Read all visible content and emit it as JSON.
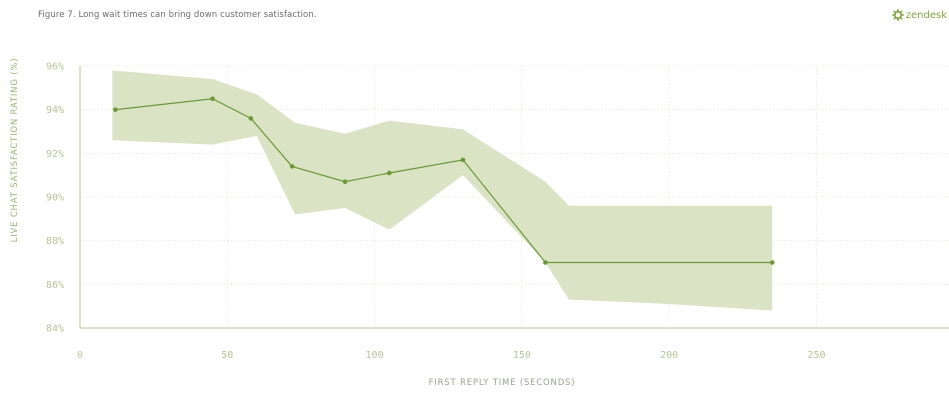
{
  "caption": "Figure 7. Long wait times can bring down customer satisfaction.",
  "brand": {
    "name": "zendesk",
    "icon": "gear-icon",
    "color": "#7fa43a"
  },
  "chart_data": {
    "type": "line",
    "xlabel": "FIRST REPLY TIME (SECONDS)",
    "ylabel": "LIVE CHAT SATISFACTION RATING (%)",
    "xlim": [
      0,
      295
    ],
    "ylim": [
      84,
      96
    ],
    "x_ticks": [
      0,
      50,
      100,
      150,
      200,
      250
    ],
    "x_tick_labels": [
      "0",
      "50",
      "100",
      "150",
      "200",
      "250"
    ],
    "y_ticks": [
      84,
      86,
      88,
      90,
      92,
      94,
      96
    ],
    "y_tick_labels": [
      "84%",
      "86%",
      "88%",
      "90%",
      "92%",
      "94%",
      "96%"
    ],
    "grid": true,
    "line_color": "#6a9a35",
    "band_color": "#dbe3c5",
    "series": [
      {
        "x": [
          12,
          45,
          58,
          72,
          90,
          105,
          130,
          158,
          235
        ],
        "y": [
          94.0,
          94.5,
          93.6,
          91.4,
          90.7,
          91.1,
          91.7,
          87.0,
          87.0
        ]
      }
    ],
    "confidence_band": {
      "x": [
        11,
        45,
        60,
        73,
        90,
        105,
        130,
        158,
        166,
        200,
        235
      ],
      "upper": [
        95.8,
        95.4,
        94.7,
        93.4,
        92.9,
        93.5,
        93.1,
        90.7,
        89.6,
        89.6,
        89.6
      ],
      "lower": [
        92.6,
        92.4,
        92.8,
        89.2,
        89.5,
        88.5,
        91.0,
        87.0,
        85.3,
        85.1,
        84.8
      ]
    }
  }
}
